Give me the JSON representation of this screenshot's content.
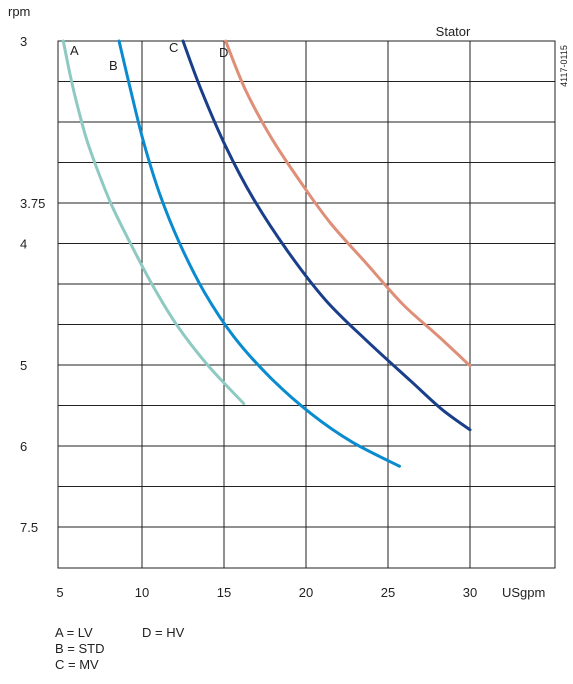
{
  "chart_data": {
    "type": "line",
    "title": "",
    "annotation": "Stator",
    "code": "4117-0115",
    "xlabel": "USgpm",
    "ylabel": "rpm",
    "xlim": [
      5,
      30
    ],
    "x_ticks": [
      5,
      10,
      15,
      20,
      25,
      30
    ],
    "y_tick_labels": [
      "3",
      "3.75",
      "4",
      "5",
      "6",
      "7.5"
    ],
    "grid": true,
    "series": [
      {
        "name": "A",
        "color": "#8ec9c2",
        "points": [
          [
            5.2,
            0
          ],
          [
            5.6,
            0.8
          ],
          [
            6.0,
            1.5
          ],
          [
            6.6,
            2.4
          ],
          [
            7.3,
            3.2
          ],
          [
            8.2,
            4.1
          ],
          [
            9.3,
            5.0
          ],
          [
            10.6,
            6.0
          ],
          [
            12.1,
            7.0
          ],
          [
            14.0,
            8.0
          ],
          [
            16.2,
            8.95
          ]
        ]
      },
      {
        "name": "B",
        "color": "#0a8bcf",
        "points": [
          [
            8.6,
            0
          ],
          [
            9.3,
            1.2
          ],
          [
            10.1,
            2.5
          ],
          [
            11.1,
            3.8
          ],
          [
            12.3,
            5.0
          ],
          [
            13.8,
            6.2
          ],
          [
            15.6,
            7.3
          ],
          [
            17.8,
            8.3
          ],
          [
            20.3,
            9.2
          ],
          [
            22.8,
            9.9
          ],
          [
            25.7,
            10.5
          ]
        ]
      },
      {
        "name": "C",
        "color": "#1a3f8a",
        "points": [
          [
            12.5,
            0
          ],
          [
            13.6,
            1.2
          ],
          [
            15.1,
            2.6
          ],
          [
            16.8,
            3.9
          ],
          [
            18.9,
            5.2
          ],
          [
            21.2,
            6.4
          ],
          [
            23.7,
            7.4
          ],
          [
            26.4,
            8.4
          ],
          [
            28.3,
            9.1
          ],
          [
            30,
            9.6
          ]
        ]
      },
      {
        "name": "D",
        "color": "#df8f78",
        "points": [
          [
            15.1,
            0
          ],
          [
            16.3,
            1.2
          ],
          [
            17.9,
            2.4
          ],
          [
            19.7,
            3.5
          ],
          [
            21.5,
            4.5
          ],
          [
            23.7,
            5.5
          ],
          [
            25.9,
            6.5
          ],
          [
            28.1,
            7.3
          ],
          [
            30,
            8.02
          ]
        ]
      }
    ],
    "legend_entries": [
      "A = LV",
      "D = HV",
      "B = STD",
      "C = MV"
    ]
  }
}
